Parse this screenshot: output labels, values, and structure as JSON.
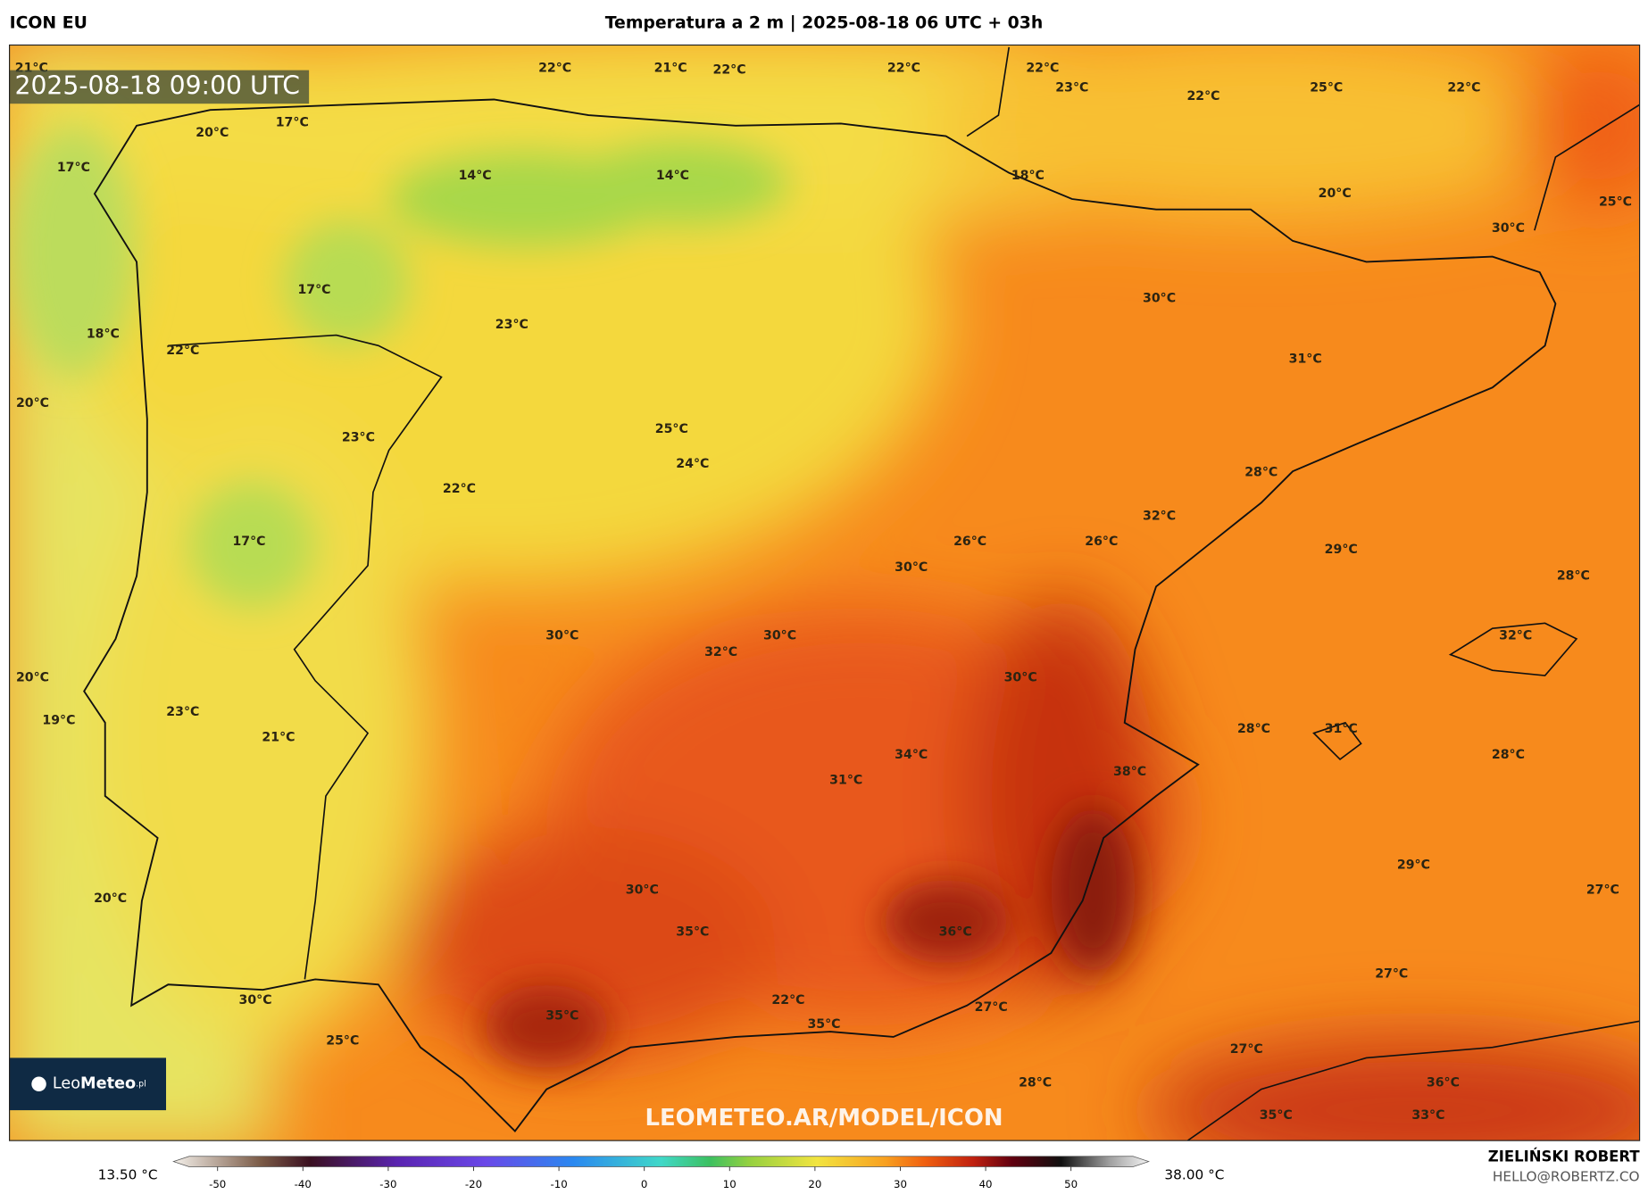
{
  "header": {
    "model": "ICON EU",
    "title": "Temperatura a 2 m | 2025-08-18 06 UTC + 03h"
  },
  "valid_time": "2025-08-18 09:00 UTC",
  "watermark": "LEOMETEO.AR/MODEL/ICON",
  "logo": {
    "light": "Leo",
    "bold": "Meteo",
    "suffix": ".pl"
  },
  "author": {
    "name": "ZIELIŃSKI ROBERT",
    "email": "HELLO@ROBERTZ.CO"
  },
  "colorbar": {
    "min_label": "13.50 °C",
    "max_label": "38.00 °C",
    "ticks": [
      -50,
      -40,
      -30,
      -20,
      -10,
      0,
      10,
      20,
      30,
      40,
      50
    ]
  },
  "map_labels": [
    "21°C",
    "22°C",
    "21°C",
    "22°C",
    "22°C",
    "22°C",
    "23°C",
    "22°C",
    "25°C",
    "22°C",
    "20°C",
    "17°C",
    "17°C",
    "14°C",
    "14°C",
    "18°C",
    "20°C",
    "25°C",
    "30°C",
    "17°C",
    "30°C",
    "18°C",
    "22°C",
    "23°C",
    "31°C",
    "20°C",
    "23°C",
    "25°C",
    "24°C",
    "28°C",
    "22°C",
    "32°C",
    "17°C",
    "26°C",
    "26°C",
    "29°C",
    "30°C",
    "28°C",
    "30°C",
    "30°C",
    "32°C",
    "32°C",
    "30°C",
    "20°C",
    "19°C",
    "23°C",
    "28°C",
    "31°C",
    "21°C",
    "34°C",
    "28°C",
    "38°C",
    "31°C",
    "29°C",
    "30°C",
    "20°C",
    "27°C",
    "35°C",
    "36°C",
    "27°C",
    "30°C",
    "22°C",
    "27°C",
    "35°C",
    "35°C",
    "25°C",
    "27°C",
    "28°C",
    "36°C",
    "35°C",
    "33°C"
  ]
}
